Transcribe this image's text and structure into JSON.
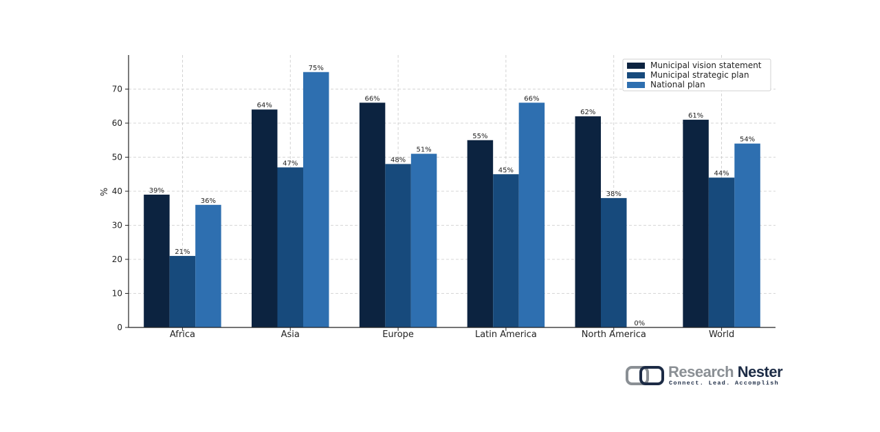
{
  "chart_data": {
    "type": "bar",
    "categories": [
      "Africa",
      "Asia",
      "Europe",
      "Latin America",
      "North America",
      "World"
    ],
    "series": [
      {
        "name": "Municipal vision statement",
        "color": "#0c2340",
        "values": [
          39,
          64,
          66,
          55,
          62,
          61
        ]
      },
      {
        "name": "Municipal strategic plan",
        "color": "#174a7c",
        "values": [
          21,
          47,
          48,
          45,
          38,
          44
        ]
      },
      {
        "name": "National plan",
        "color": "#2e6fb0",
        "values": [
          36,
          75,
          51,
          66,
          0,
          54
        ]
      }
    ],
    "value_suffix": "%",
    "ylabel": "%",
    "ylim": [
      0,
      80
    ],
    "yticks": [
      0,
      10,
      20,
      30,
      40,
      50,
      60,
      70
    ],
    "grid": true,
    "legend_position": "top-right"
  },
  "branding": {
    "name_part1": "Research",
    "name_part2": "Nester",
    "tagline": "Connect. Lead. Accomplish"
  }
}
